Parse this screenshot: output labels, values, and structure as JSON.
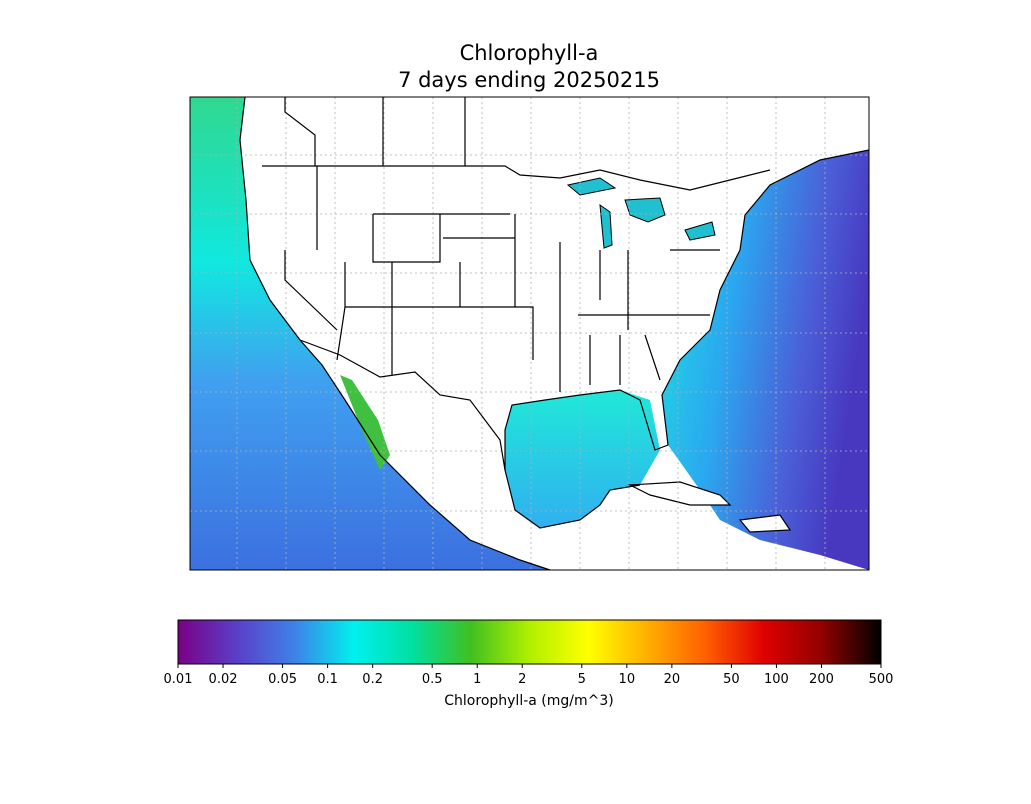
{
  "map": {
    "title": "Chlorophyll-a",
    "subtitle": "7 days ending 20250215"
  },
  "colorbar": {
    "label": "Chlorophyll-a (mg/m^3)",
    "scale": "log",
    "lim": [
      0.01,
      500
    ],
    "ticks": [
      0.01,
      0.02,
      0.05,
      0.1,
      0.2,
      0.5,
      1,
      2,
      5,
      10,
      20,
      50,
      100,
      200,
      500
    ],
    "colors": [
      "#7a0085",
      "#5a3fc8",
      "#3e82e8",
      "#00f0f0",
      "#00e0a0",
      "#40c020",
      "#b0f000",
      "#ffff00",
      "#ffb000",
      "#ff6000",
      "#e00000",
      "#900000",
      "#000000"
    ]
  }
}
